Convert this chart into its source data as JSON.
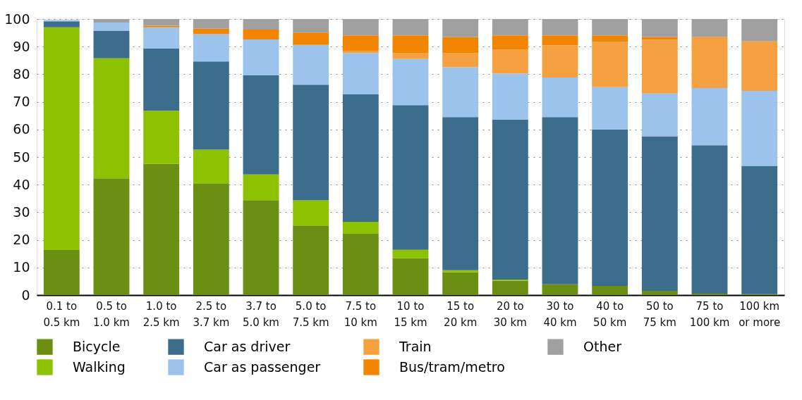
{
  "chart_data": {
    "type": "bar",
    "stacked": true,
    "categories": [
      "0.1 to 0.5 km",
      "0.5 to 1.0 km",
      "1.0 to 2.5 km",
      "2.5 to 3.7 km",
      "3.7 to 5.0 km",
      "5.0 to 7.5 km",
      "7.5 to 10 km",
      "10 to 15 km",
      "15 to 20 km",
      "20 to 30 km",
      "30 to 40 km",
      "40 to 50 km",
      "50 to 75 km",
      "75 to 100 km",
      "100 km or more"
    ],
    "series": [
      {
        "name": "Bicycle",
        "color": "#6a8f12",
        "values": [
          16.3,
          42.3,
          47.5,
          40.5,
          34.4,
          25.2,
          22.2,
          13.3,
          8.2,
          5.2,
          3.9,
          3.3,
          1.5,
          0.5,
          0.3
        ]
      },
      {
        "name": "Walking",
        "color": "#8dc200",
        "values": [
          80.7,
          43.5,
          19.3,
          12.2,
          9.3,
          9.1,
          4.3,
          3.1,
          0.8,
          0.4,
          0,
          0,
          0,
          0,
          0
        ]
      },
      {
        "name": "Car as driver",
        "color": "#3d6d8c",
        "values": [
          2.2,
          10,
          22.5,
          31.9,
          35.9,
          41.9,
          46.2,
          52.4,
          55.5,
          58,
          60.6,
          56.7,
          56,
          53.8,
          46.5
        ]
      },
      {
        "name": "Car as passenger",
        "color": "#9cc3ec",
        "values": [
          0.4,
          2.9,
          7.7,
          9.9,
          13,
          14.4,
          15,
          16.7,
          18,
          16.6,
          14.3,
          15.3,
          15.5,
          20.7,
          27.2
        ]
      },
      {
        "name": "Train",
        "color": "#f5a142",
        "values": [
          0,
          0,
          0,
          0,
          0,
          0,
          0.8,
          2.2,
          5.1,
          8.8,
          11.7,
          16.4,
          19.5,
          18.2,
          17.9
        ]
      },
      {
        "name": "Bus/tram/metro",
        "color": "#f28500",
        "values": [
          0,
          0,
          0.6,
          2,
          3.6,
          4.5,
          5.6,
          6.4,
          5.8,
          5.1,
          3.6,
          2.4,
          0.9,
          0.3,
          0
        ]
      },
      {
        "name": "Other",
        "color": "#a0a0a0",
        "values": [
          null,
          1.3,
          2.4,
          3.5,
          3.8,
          4.9,
          5.9,
          5.9,
          6.6,
          5.9,
          5.9,
          5.9,
          6.6,
          6.5,
          8.1
        ]
      }
    ],
    "ylim": [
      0,
      100
    ],
    "yticks": [
      0,
      10,
      20,
      30,
      40,
      50,
      60,
      70,
      80,
      90,
      100
    ],
    "grid": "y",
    "legend": "bottom"
  }
}
